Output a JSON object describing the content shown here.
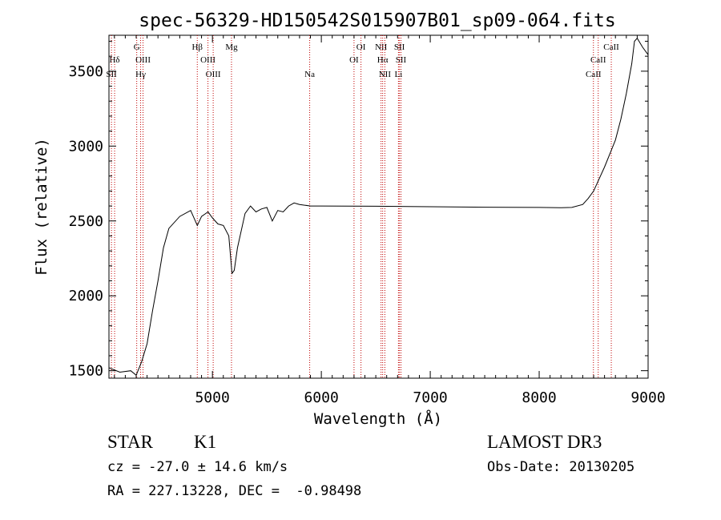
{
  "chart_data": {
    "type": "line",
    "title": "spec-56329-HD150542S015907B01_sp09-064.fits",
    "xlabel": "Wavelength (Å)",
    "ylabel": "Flux (relative)",
    "xlim": [
      4050,
      9000
    ],
    "ylim": [
      1450,
      3740
    ],
    "xticks": [
      5000,
      6000,
      7000,
      8000,
      9000
    ],
    "yticks": [
      1500,
      2000,
      2500,
      3000,
      3500
    ],
    "series": [
      {
        "name": "flux",
        "x": [
          4050,
          4150,
          4250,
          4300,
          4350,
          4400,
          4450,
          4500,
          4550,
          4600,
          4700,
          4800,
          4861,
          4900,
          4960,
          5000,
          5050,
          5100,
          5150,
          5180,
          5200,
          5230,
          5300,
          5350,
          5400,
          5450,
          5500,
          5550,
          5600,
          5650,
          5700,
          5750,
          5800,
          5900,
          6000,
          6500,
          7000,
          7500,
          8000,
          8200,
          8300,
          8400,
          8450,
          8500,
          8550,
          8600,
          8650,
          8700,
          8750,
          8800,
          8850,
          8875,
          8900,
          8950,
          9000
        ],
        "y": [
          1520,
          1490,
          1500,
          1470,
          1560,
          1680,
          1900,
          2100,
          2320,
          2450,
          2530,
          2570,
          2470,
          2530,
          2560,
          2520,
          2480,
          2470,
          2400,
          2150,
          2170,
          2320,
          2550,
          2600,
          2560,
          2580,
          2590,
          2500,
          2570,
          2560,
          2600,
          2620,
          2610,
          2600,
          2600,
          2598,
          2595,
          2592,
          2590,
          2588,
          2590,
          2610,
          2650,
          2700,
          2780,
          2860,
          2950,
          3040,
          3180,
          3350,
          3550,
          3700,
          3720,
          3660,
          3610
        ]
      }
    ],
    "lines": [
      {
        "label": "Hδ",
        "wavelength": 4102,
        "row": 1
      },
      {
        "label": "SII",
        "wavelength": 4073,
        "row": 2
      },
      {
        "label": "G",
        "wavelength": 4305,
        "row": 0
      },
      {
        "label": "OIII",
        "wavelength": 4363,
        "row": 1
      },
      {
        "label": "Hγ",
        "wavelength": 4341,
        "row": 2
      },
      {
        "label": "Hβ",
        "wavelength": 4861,
        "row": 0
      },
      {
        "label": "OIII",
        "wavelength": 4959,
        "row": 1
      },
      {
        "label": "OIII",
        "wavelength": 5007,
        "row": 2
      },
      {
        "label": "Mg",
        "wavelength": 5175,
        "row": 0
      },
      {
        "label": "Na",
        "wavelength": 5893,
        "row": 2
      },
      {
        "label": "OI",
        "wavelength": 6364,
        "row": 0
      },
      {
        "label": "OI",
        "wavelength": 6300,
        "row": 1
      },
      {
        "label": "NII",
        "wavelength": 6548,
        "row": 0
      },
      {
        "label": "Hα",
        "wavelength": 6563,
        "row": 1
      },
      {
        "label": "NII",
        "wavelength": 6583,
        "row": 2
      },
      {
        "label": "SII",
        "wavelength": 6717,
        "row": 0
      },
      {
        "label": "SII",
        "wavelength": 6731,
        "row": 1
      },
      {
        "label": "Li",
        "wavelength": 6708,
        "row": 2
      },
      {
        "label": "CaII",
        "wavelength": 8662,
        "row": 0
      },
      {
        "label": "CaII",
        "wavelength": 8542,
        "row": 1
      },
      {
        "label": "CaII",
        "wavelength": 8498,
        "row": 2
      }
    ],
    "line_color": "#c00000",
    "spectrum_color": "#000000"
  },
  "footer": {
    "class_label": "STAR",
    "subclass": "K1",
    "survey": "LAMOST DR3",
    "redshift": "cz = -27.0 ± 14.6 km/s",
    "obs_date": "Obs-Date: 20130205",
    "coords": "RA = 227.13228, DEC =  -0.98498"
  }
}
